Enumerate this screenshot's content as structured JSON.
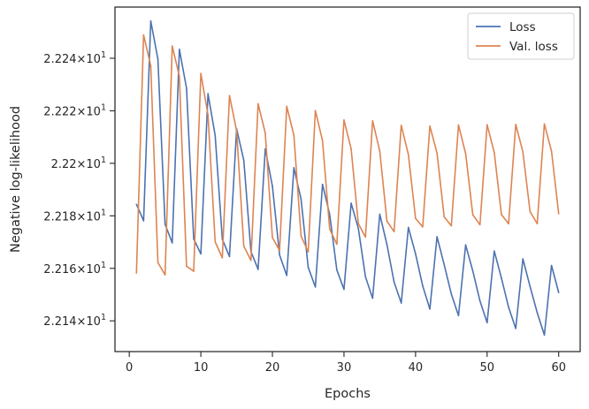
{
  "chart_data": {
    "type": "line",
    "title": "",
    "xlabel": "Epochs",
    "ylabel": "Negative log-likelihood",
    "xlim": [
      -2.0,
      63.0
    ],
    "ylim": [
      22.1283,
      22.2595
    ],
    "x_ticks": [
      0,
      10,
      20,
      30,
      40,
      50,
      60
    ],
    "x_tick_labels": [
      "0",
      "10",
      "20",
      "30",
      "40",
      "50",
      "60"
    ],
    "y_ticks": [
      22.14,
      22.16,
      22.18,
      22.2,
      22.22,
      22.24
    ],
    "y_tick_labels": [
      {
        "mantissa": "2.214",
        "exponent": "1"
      },
      {
        "mantissa": "2.216",
        "exponent": "1"
      },
      {
        "mantissa": "2.218",
        "exponent": "1"
      },
      {
        "mantissa": "2.22",
        "exponent": "1"
      },
      {
        "mantissa": "2.222",
        "exponent": "1"
      },
      {
        "mantissa": "2.224",
        "exponent": "1"
      }
    ],
    "y_tick_times": "×10",
    "grid": false,
    "legend_position": "top-right",
    "x": [
      1,
      2,
      3,
      4,
      5,
      6,
      7,
      8,
      9,
      10,
      11,
      12,
      13,
      14,
      15,
      16,
      17,
      18,
      19,
      20,
      21,
      22,
      23,
      24,
      25,
      26,
      27,
      28,
      29,
      30,
      31,
      32,
      33,
      34,
      35,
      36,
      37,
      38,
      39,
      40,
      41,
      42,
      43,
      44,
      45,
      46,
      47,
      48,
      49,
      50,
      51,
      52,
      53,
      54,
      55,
      56,
      57,
      58,
      59,
      60
    ],
    "series": [
      {
        "name": "Loss",
        "color": "#4c72b0",
        "values": [
          22.1844,
          22.1781,
          22.2542,
          22.2397,
          22.1768,
          22.1697,
          22.2434,
          22.2286,
          22.1712,
          22.1655,
          22.2265,
          22.2106,
          22.1711,
          22.1645,
          22.2131,
          22.2012,
          22.1664,
          22.1596,
          22.2055,
          22.1913,
          22.1651,
          22.1573,
          22.1983,
          22.1864,
          22.1604,
          22.1529,
          22.192,
          22.1806,
          22.1594,
          22.152,
          22.1848,
          22.1753,
          22.1568,
          22.1486,
          22.1806,
          22.1691,
          22.1548,
          22.1468,
          22.1756,
          22.1655,
          22.1533,
          22.1445,
          22.172,
          22.1614,
          22.1502,
          22.142,
          22.1689,
          22.159,
          22.1476,
          22.1393,
          22.1666,
          22.1563,
          22.1452,
          22.1371,
          22.1636,
          22.1531,
          22.1431,
          22.1346,
          22.1611,
          22.1508
        ]
      },
      {
        "name": "Val. loss",
        "color": "#dd8452",
        "values": [
          22.1582,
          22.2489,
          22.2371,
          22.1622,
          22.1575,
          22.2447,
          22.2331,
          22.1608,
          22.1589,
          22.2342,
          22.2184,
          22.1701,
          22.164,
          22.2258,
          22.2123,
          22.1685,
          22.163,
          22.2227,
          22.2115,
          22.1717,
          22.1668,
          22.2217,
          22.2107,
          22.1723,
          22.1663,
          22.2201,
          22.2086,
          22.175,
          22.1692,
          22.2165,
          22.2055,
          22.1771,
          22.1719,
          22.2162,
          22.2047,
          22.178,
          22.174,
          22.2145,
          22.2033,
          22.179,
          22.1758,
          22.2142,
          22.2039,
          22.1796,
          22.1762,
          22.2146,
          22.2037,
          22.1804,
          22.1766,
          22.2147,
          22.2041,
          22.1805,
          22.177,
          22.2148,
          22.2043,
          22.1816,
          22.177,
          22.215,
          22.2046,
          22.1808
        ]
      }
    ]
  }
}
